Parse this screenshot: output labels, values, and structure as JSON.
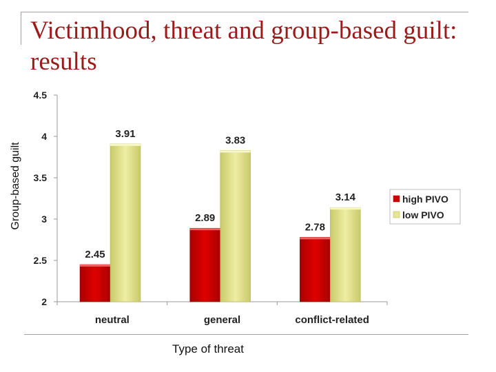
{
  "slide": {
    "title": "Victimhood, threat and group-based guilt: results"
  },
  "colors": {
    "high_pivo": "#cc0000",
    "low_pivo": "#e6e68c",
    "title": "#9b1b1b"
  },
  "chart_data": {
    "type": "bar",
    "title": "",
    "xlabel": "Type of threat",
    "ylabel": "Group-based guilt",
    "ylim": [
      2,
      4.5
    ],
    "yticks": [
      "2",
      "2.5",
      "3",
      "3.5",
      "4",
      "4.5"
    ],
    "categories": [
      "neutral",
      "general",
      "conflict-related"
    ],
    "series": [
      {
        "name": "high PIVO",
        "values": [
          2.45,
          2.89,
          2.78
        ],
        "labels": [
          "2.45",
          "2.89",
          "2.78"
        ]
      },
      {
        "name": "low PIVO",
        "values": [
          3.91,
          3.83,
          3.14
        ],
        "labels": [
          "3.91",
          "3.83",
          "3.14"
        ]
      }
    ],
    "grid": false,
    "legend_position": "right"
  }
}
